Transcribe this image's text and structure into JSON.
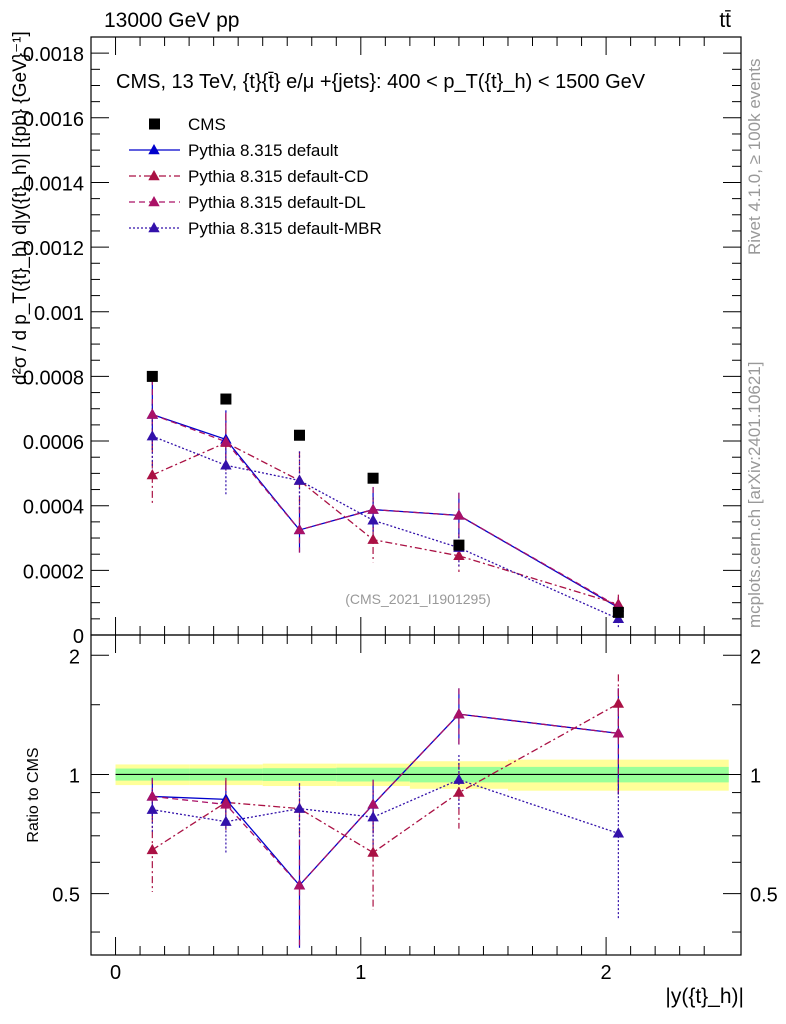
{
  "header": {
    "energy_label": "13000 GeV pp",
    "process_label": "tt̄"
  },
  "side_labels": {
    "rivet": "Rivet 4.1.0, ≥ 100k events",
    "mcplots": "mcplots.cern.ch [arXiv:2401.10621]"
  },
  "chart_data": [
    {
      "type": "line",
      "title": "CMS, 13 TeV, {t}{t̄} e/μ +{jets}: 400 <  p_T({t}_h) < 1500 GeV",
      "ylabel": "d²σ / d p_T({t}_h) d|y({t}_h)|  [{pb} {GeV}⁻¹]",
      "watermark": "(CMS_2021_I1901295)",
      "xlim": [
        -0.1,
        2.55
      ],
      "ylim": [
        0,
        0.00185
      ],
      "yticks": [
        0,
        0.0002,
        0.0004,
        0.0006,
        0.0008,
        0.001,
        0.0012,
        0.0014,
        0.0016,
        0.0018
      ],
      "ytick_labels": [
        "0",
        "0.0002",
        "0.0004",
        "0.0006",
        "0.0008",
        "0.001",
        "0.0012",
        "0.0014",
        "0.0016",
        "0.0018"
      ],
      "x": [
        0.15,
        0.45,
        0.75,
        1.05,
        1.4,
        2.05
      ],
      "bin_edges": [
        0,
        0.3,
        0.6,
        0.9,
        1.2,
        1.6,
        2.5
      ],
      "legend": [
        "CMS",
        "Pythia 8.315 default",
        "Pythia 8.315 default-CD",
        "Pythia 8.315 default-DL",
        "Pythia 8.315 default-MBR"
      ],
      "series": [
        {
          "name": "CMS",
          "color": "#000000",
          "marker": "square",
          "values": [
            0.0008,
            0.00073,
            0.000618,
            0.000485,
            0.000278,
            7e-05
          ]
        },
        {
          "name": "Pythia 8.315 default",
          "color": "#0000cc",
          "marker": "triangle",
          "dash": "solid",
          "values": [
            0.000682,
            0.000605,
            0.000325,
            0.000388,
            0.00037,
            8.5e-05
          ],
          "err": [
            0.00011,
            9e-05,
            7e-05,
            7e-05,
            7e-05,
            3e-05
          ]
        },
        {
          "name": "Pythia 8.315 default-CD",
          "color": "#aa1144",
          "marker": "triangle",
          "dash": "dashdot",
          "values": [
            0.000495,
            0.000595,
            0.000478,
            0.000295,
            0.000245,
            9.5e-05
          ],
          "err": [
            9e-05,
            9e-05,
            9e-05,
            7e-05,
            5e-05,
            3e-05
          ]
        },
        {
          "name": "Pythia 8.315 default-DL",
          "color": "#aa1166",
          "marker": "triangle",
          "dash": "dashed",
          "values": [
            0.000682,
            0.000598,
            0.000325,
            0.000388,
            0.00037,
            8.8e-05
          ],
          "err": [
            0.00011,
            9e-05,
            7e-05,
            7e-05,
            7e-05,
            3e-05
          ]
        },
        {
          "name": "Pythia 8.315 default-MBR",
          "color": "#3311aa",
          "marker": "triangle",
          "dash": "dotted",
          "values": [
            0.000615,
            0.000525,
            0.000478,
            0.000355,
            0.00027,
            5e-05
          ],
          "err": [
            0.0001,
            9e-05,
            9e-05,
            7e-05,
            6e-05,
            3e-05
          ]
        }
      ]
    },
    {
      "type": "line",
      "ylabel": "Ratio to CMS",
      "xlabel": "|y({t}_h)|",
      "xlim": [
        -0.1,
        2.55
      ],
      "ylim": [
        0.35,
        2.25
      ],
      "xticks": [
        0,
        1,
        2
      ],
      "xtick_labels": [
        "0",
        "1",
        "2"
      ],
      "yticks": [
        0.5,
        1,
        2
      ],
      "ytick_labels": [
        "0.5",
        "1",
        "2"
      ],
      "bands": {
        "bin_edges": [
          0,
          0.3,
          0.6,
          0.9,
          1.2,
          1.6,
          2.5
        ],
        "stat": [
          0.035,
          0.035,
          0.037,
          0.04,
          0.045,
          0.045
        ],
        "total": [
          0.06,
          0.06,
          0.065,
          0.065,
          0.08,
          0.09
        ]
      },
      "series": [
        {
          "name": "Pythia 8.315 default",
          "values": [
            0.88,
            0.865,
            0.525,
            0.84,
            1.42,
            1.27
          ],
          "err": [
            0.1,
            0.1,
            0.16,
            0.13,
            0.23,
            0.38
          ]
        },
        {
          "name": "Pythia 8.315 default-CD",
          "values": [
            0.645,
            0.85,
            0.82,
            0.635,
            0.9,
            1.51
          ],
          "err": [
            0.14,
            0.13,
            0.13,
            0.18,
            0.17,
            0.28
          ]
        },
        {
          "name": "Pythia 8.315 default-DL",
          "values": [
            0.88,
            0.84,
            0.525,
            0.84,
            1.42,
            1.27
          ],
          "err": [
            0.1,
            0.1,
            0.16,
            0.13,
            0.23,
            0.38
          ]
        },
        {
          "name": "Pythia 8.315 default-MBR",
          "values": [
            0.815,
            0.76,
            0.82,
            0.78,
            0.97,
            0.71
          ],
          "err": [
            0.1,
            0.13,
            0.13,
            0.13,
            0.15,
            0.28
          ]
        }
      ]
    }
  ]
}
